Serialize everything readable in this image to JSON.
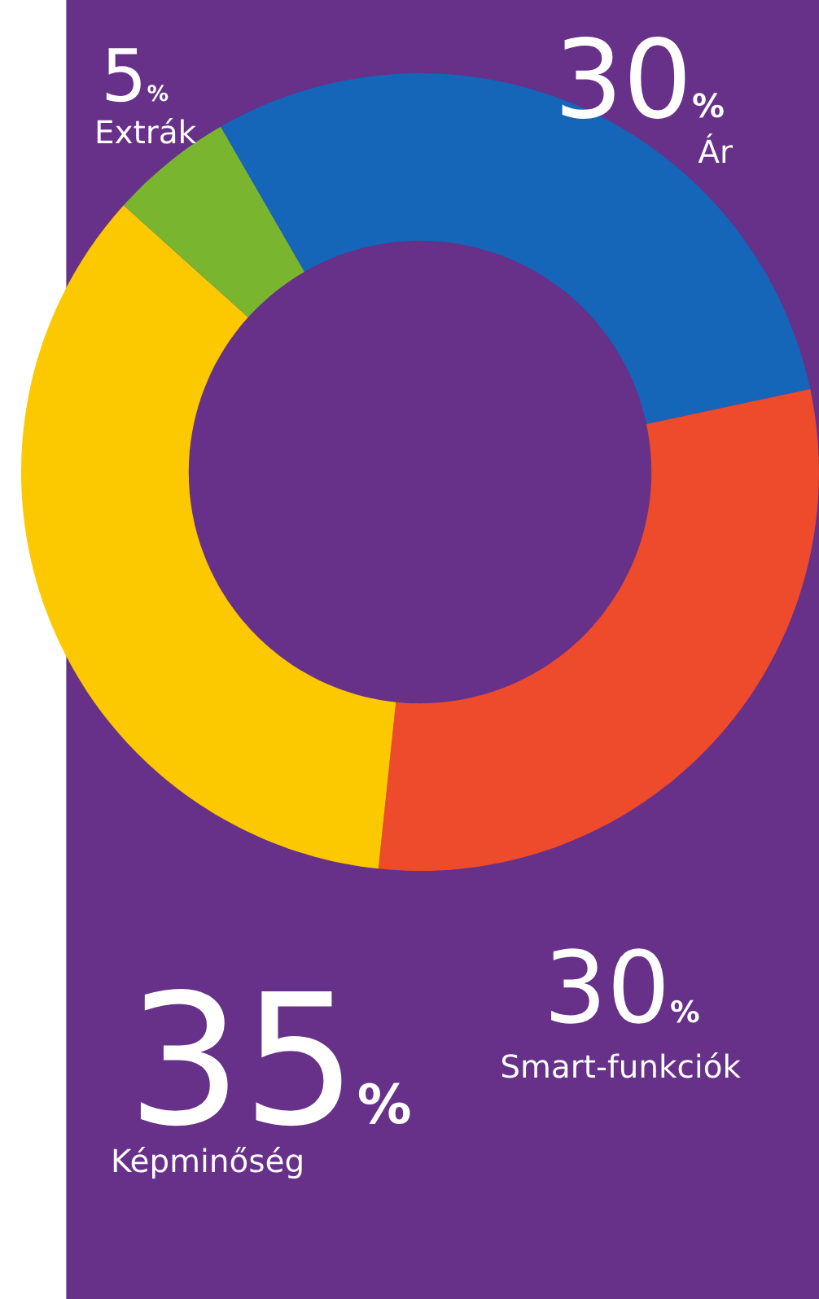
{
  "chart_data": {
    "type": "donut",
    "categories": [
      "Ár",
      "Smart-funkciók",
      "Képminőség",
      "Extrák"
    ],
    "values": [
      30,
      30,
      35,
      5
    ],
    "colors": [
      "#1565b8",
      "#ee4a2c",
      "#fcc800",
      "#7ab530"
    ],
    "value_labels": [
      "30%",
      "30%",
      "35%",
      "5%"
    ]
  }
}
